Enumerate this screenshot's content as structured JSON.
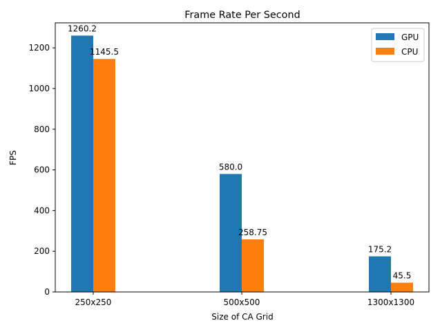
{
  "chart_data": {
    "type": "bar",
    "title": "Frame Rate Per Second",
    "xlabel": "Size of CA Grid",
    "ylabel": "FPS",
    "categories": [
      "250x250",
      "500x500",
      "1300x1300"
    ],
    "series": [
      {
        "name": "GPU",
        "color": "#1f77b4",
        "values": [
          1260.2,
          580.0,
          175.2
        ],
        "labels": [
          "1260.2",
          "580.0",
          "175.2"
        ]
      },
      {
        "name": "CPU",
        "color": "#ff7f0e",
        "values": [
          1145.5,
          258.75,
          45.5
        ],
        "labels": [
          "1145.5",
          "258.75",
          "45.5"
        ]
      }
    ],
    "ylim": [
      0,
      1323
    ],
    "yticks": [
      0,
      200,
      400,
      600,
      800,
      1000,
      1200
    ],
    "grid": false,
    "legend_position": "top-right"
  }
}
